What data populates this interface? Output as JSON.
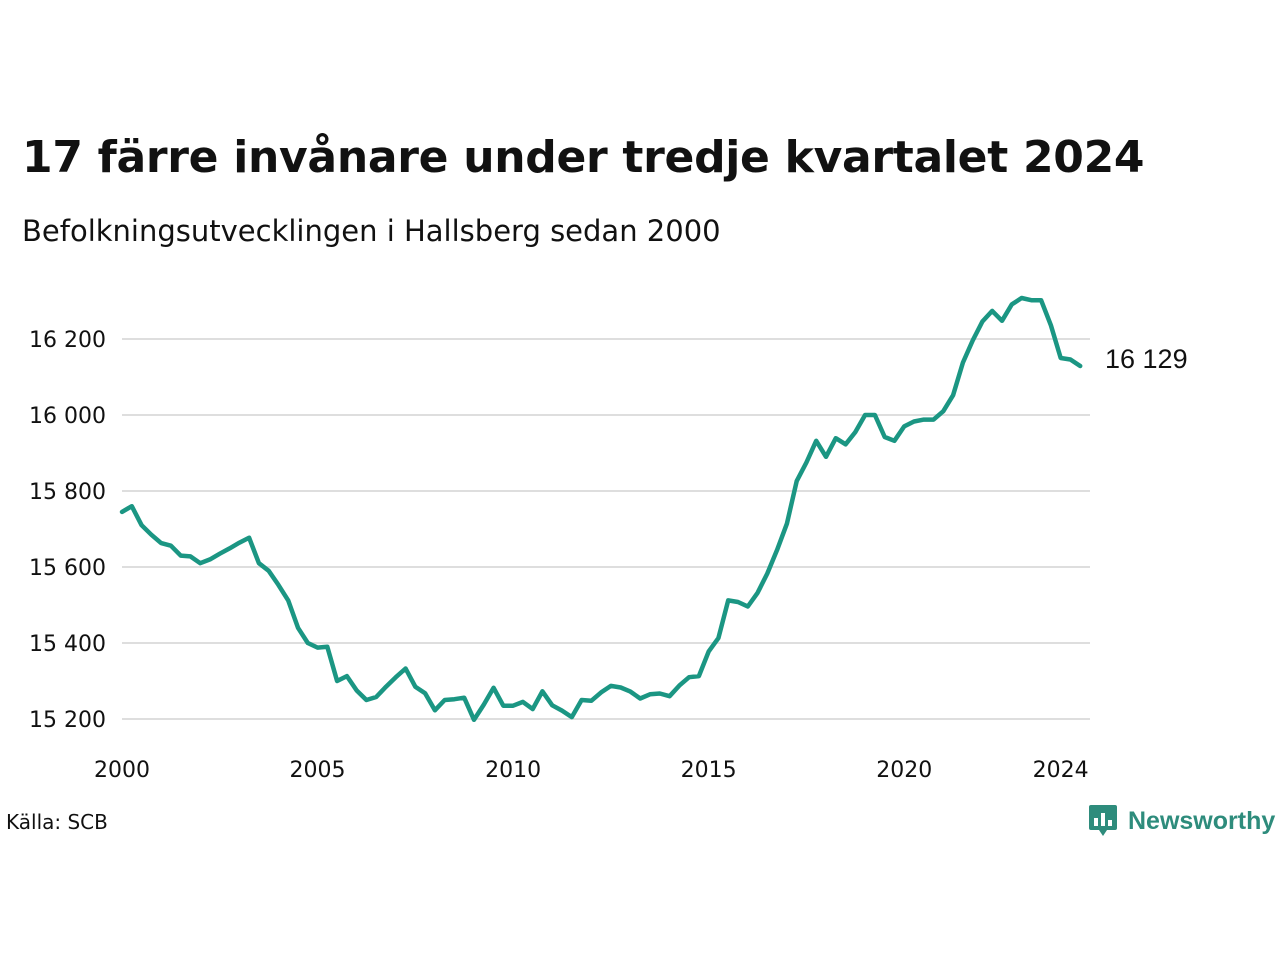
{
  "title": "17 färre invånare under tredje kvartalet 2024",
  "subtitle": "Befolkningsutvecklingen i Hallsberg sedan 2000",
  "source": "Källa: SCB",
  "brand": {
    "name": "Newsworthy",
    "icon": "newsworthy-logo-icon"
  },
  "colors": {
    "line": "#1b9683",
    "grid": "#dedede",
    "brand": "#2e8c7c",
    "text": "#111111"
  },
  "chart_data": {
    "type": "line",
    "xlim": [
      2000,
      2024.75
    ],
    "ylim": [
      15150,
      16350
    ],
    "x_ticks": [
      2000,
      2005,
      2010,
      2015,
      2020,
      2024
    ],
    "x_tick_labels": [
      "2000",
      "2005",
      "2010",
      "2015",
      "2020",
      "2024"
    ],
    "y_ticks": [
      15200,
      15400,
      15600,
      15800,
      16000,
      16200
    ],
    "y_tick_labels": [
      "15 200",
      "15 400",
      "15 600",
      "15 800",
      "16 000",
      "16 200"
    ],
    "grid": "horizontal",
    "end_label": "16 129",
    "series": [
      {
        "x": [
          2000.0,
          2000.25,
          2000.5,
          2000.75,
          2001.0,
          2001.25,
          2001.5,
          2001.75,
          2002.0,
          2002.25,
          2002.5,
          2002.75,
          2003.0,
          2003.25,
          2003.5,
          2003.75,
          2004.0,
          2004.25,
          2004.5,
          2004.75,
          2005.0,
          2005.25,
          2005.5,
          2005.75,
          2006.0,
          2006.25,
          2006.5,
          2006.75,
          2007.0,
          2007.25,
          2007.5,
          2007.75,
          2008.0,
          2008.25,
          2008.5,
          2008.75,
          2009.0,
          2009.25,
          2009.5,
          2009.75,
          2010.0,
          2010.25,
          2010.5,
          2010.75,
          2011.0,
          2011.25,
          2011.5,
          2011.75,
          2012.0,
          2012.25,
          2012.5,
          2012.75,
          2013.0,
          2013.25,
          2013.5,
          2013.75,
          2014.0,
          2014.25,
          2014.5,
          2014.75,
          2015.0,
          2015.25,
          2015.5,
          2015.75,
          2016.0,
          2016.25,
          2016.5,
          2016.75,
          2017.0,
          2017.25,
          2017.5,
          2017.75,
          2018.0,
          2018.25,
          2018.5,
          2018.75,
          2019.0,
          2019.25,
          2019.5,
          2019.75,
          2020.0,
          2020.25,
          2020.5,
          2020.75,
          2021.0,
          2021.25,
          2021.5,
          2021.75,
          2022.0,
          2022.25,
          2022.5,
          2022.75,
          2023.0,
          2023.25,
          2023.5,
          2023.75,
          2024.0,
          2024.25,
          2024.5
        ],
        "values": [
          15745,
          15760,
          15710,
          15685,
          15663,
          15656,
          15630,
          15628,
          15610,
          15620,
          15635,
          15649,
          15664,
          15677,
          15610,
          15590,
          15553,
          15512,
          15440,
          15400,
          15388,
          15390,
          15300,
          15313,
          15275,
          15250,
          15258,
          15285,
          15310,
          15333,
          15285,
          15268,
          15223,
          15250,
          15252,
          15256,
          15198,
          15238,
          15282,
          15235,
          15235,
          15245,
          15226,
          15273,
          15236,
          15222,
          15205,
          15250,
          15248,
          15270,
          15287,
          15283,
          15272,
          15254,
          15265,
          15267,
          15260,
          15288,
          15310,
          15313,
          15378,
          15413,
          15512,
          15508,
          15496,
          15532,
          15583,
          15645,
          15714,
          15826,
          15875,
          15932,
          15890,
          15939,
          15923,
          15955,
          16000,
          16000,
          15942,
          15932,
          15970,
          15983,
          15988,
          15988,
          16010,
          16052,
          16138,
          16196,
          16246,
          16274,
          16248,
          16291,
          16308,
          16302,
          16302,
          16236,
          16150,
          16146,
          16129
        ]
      }
    ]
  }
}
